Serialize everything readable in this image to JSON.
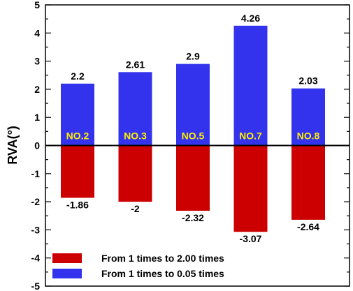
{
  "chart_data": {
    "type": "bar",
    "categories": [
      "NO.2",
      "NO.3",
      "NO.5",
      "NO.7",
      "NO.8"
    ],
    "series": [
      {
        "name": "From 1 times to 2.00 times",
        "color": "#cc0000",
        "values": [
          -1.86,
          -2,
          -2.32,
          -3.07,
          -2.64
        ],
        "labels": [
          "-1.86",
          "-2",
          "-2.32",
          "-3.07",
          "-2.64"
        ]
      },
      {
        "name": "From 1 times to 0.05 times",
        "color": "#3333ee",
        "values": [
          2.2,
          2.61,
          2.9,
          4.26,
          2.03
        ],
        "labels": [
          "2.2",
          "2.61",
          "2.9",
          "4.26",
          "2.03"
        ]
      }
    ],
    "ylabel": "RVA(°)",
    "xlabel": "",
    "ylim": [
      -5,
      5
    ],
    "yticks": [
      "-5",
      "-4",
      "-3",
      "-2",
      "-1",
      "0",
      "1",
      "2",
      "3",
      "4",
      "5"
    ],
    "category_label_color": "#ffee00",
    "legend_position": "bottom-left",
    "grid": false
  }
}
